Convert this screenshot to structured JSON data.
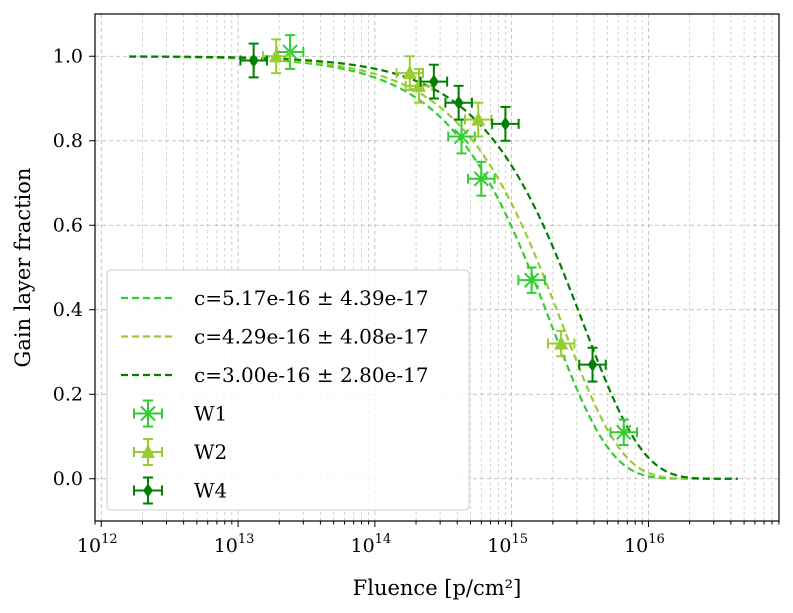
{
  "chart_data": {
    "type": "scatter",
    "xlabel": "Fluence [p/cm²]",
    "ylabel": "Gain layer fraction",
    "xscale": "log",
    "xlim": [
      900000000000.0,
      9e+16
    ],
    "ylim": [
      -0.1,
      1.1
    ],
    "y_ticks": [
      "0.0",
      "0.2",
      "0.4",
      "0.6",
      "0.8",
      "1.0"
    ],
    "x_ticks": [
      {
        "base": "10",
        "exp": "12",
        "value": 1000000000000.0
      },
      {
        "base": "10",
        "exp": "13",
        "value": 10000000000000.0
      },
      {
        "base": "10",
        "exp": "14",
        "value": 100000000000000.0
      },
      {
        "base": "10",
        "exp": "15",
        "value": 1000000000000000.0
      },
      {
        "base": "10",
        "exp": "16",
        "value": 1e+16
      }
    ],
    "grid": true,
    "legend_position": "lower-left",
    "fit_curves": [
      {
        "label": "c=5.17e-16 ± 4.39e-17",
        "c": 5.17e-16,
        "color": "#33cc33"
      },
      {
        "label": "c=4.29e-16 ± 4.08e-17",
        "c": 4.29e-16,
        "color": "#99cc33"
      },
      {
        "label": "c=3.00e-16 ± 2.80e-17",
        "c": 3e-16,
        "color": "#008000"
      }
    ],
    "fit_range": [
      1600000000000.0,
      4.5e+16
    ],
    "series": [
      {
        "name": "W1",
        "marker": "x",
        "color": "#33cc33",
        "points": [
          {
            "x": 24000000000000.0,
            "y": 1.01,
            "yerr": 0.04
          },
          {
            "x": 430000000000000.0,
            "y": 0.81,
            "yerr": 0.04
          },
          {
            "x": 600000000000000.0,
            "y": 0.71,
            "yerr": 0.04
          },
          {
            "x": 1400000000000000.0,
            "y": 0.47,
            "yerr": 0.03
          },
          {
            "x": 6600000000000000.0,
            "y": 0.11,
            "yerr": 0.03
          }
        ]
      },
      {
        "name": "W2",
        "marker": "triangle",
        "color": "#99cc33",
        "points": [
          {
            "x": 19000000000000.0,
            "y": 1.0,
            "yerr": 0.04
          },
          {
            "x": 180000000000000.0,
            "y": 0.96,
            "yerr": 0.04
          },
          {
            "x": 210000000000000.0,
            "y": 0.93,
            "yerr": 0.04
          },
          {
            "x": 570000000000000.0,
            "y": 0.85,
            "yerr": 0.04
          },
          {
            "x": 2300000000000000.0,
            "y": 0.32,
            "yerr": 0.03
          }
        ]
      },
      {
        "name": "W4",
        "marker": "diamond",
        "color": "#008000",
        "points": [
          {
            "x": 13000000000000.0,
            "y": 0.99,
            "yerr": 0.04
          },
          {
            "x": 270000000000000.0,
            "y": 0.94,
            "yerr": 0.04
          },
          {
            "x": 410000000000000.0,
            "y": 0.89,
            "yerr": 0.04
          },
          {
            "x": 900000000000000.0,
            "y": 0.84,
            "yerr": 0.04
          },
          {
            "x": 3900000000000000.0,
            "y": 0.27,
            "yerr": 0.04
          }
        ]
      }
    ]
  }
}
